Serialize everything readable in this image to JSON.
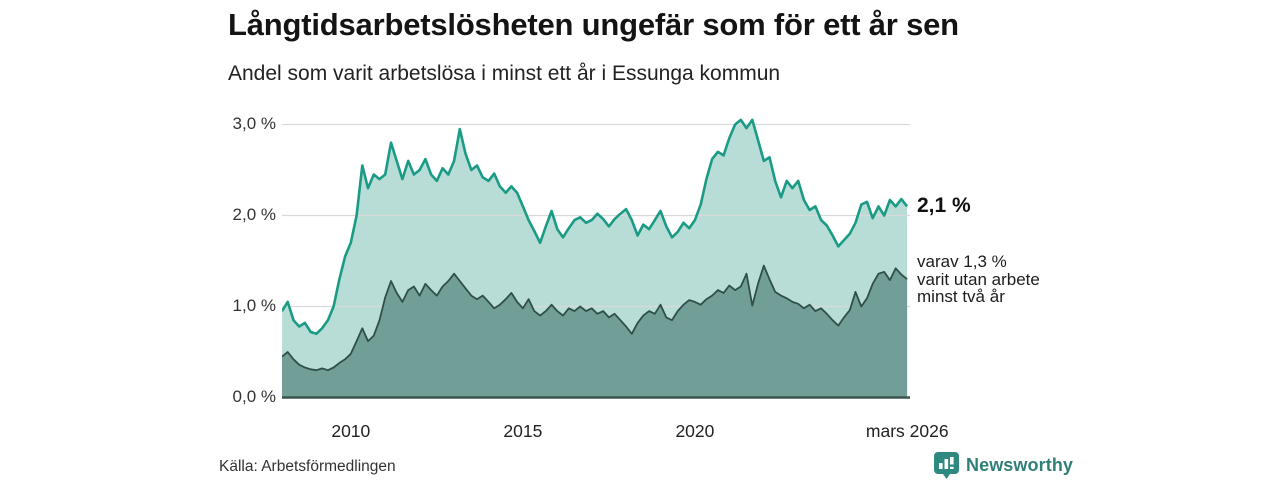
{
  "header": {
    "title": "Långtidsarbetslösheten ungefär som för ett år sen",
    "subtitle": "Andel som varit arbetslösa i minst ett år i Essunga kommun"
  },
  "annotations": {
    "end_value_total": "2,1 %",
    "detail_line1": "varav 1,3 %",
    "detail_line2": "varit utan arbete",
    "detail_line3": "minst två år"
  },
  "footer": {
    "source": "Källa: Arbetsförmedlingen",
    "brand": "Newsworthy",
    "brand_icon": "bar-chart-speech-bubble-icon"
  },
  "colors": {
    "line_total": "#1b9b85",
    "fill_total": "#b7ddd6",
    "line_two_years": "#2f4f49",
    "fill_two_years": "#719e96",
    "gridline": "#d9d9d9",
    "baseline": "#3c544e",
    "brand_teal": "#2f7f78"
  },
  "chart_data": {
    "type": "area",
    "title": "Långtidsarbetslösheten ungefär som för ett år sen",
    "subtitle": "Andel som varit arbetslösa i minst ett år i Essunga kommun",
    "unit": "%",
    "grid": true,
    "xlim": [
      2008,
      2026.25
    ],
    "ylim": [
      0,
      3.2
    ],
    "x_start_year": 2008,
    "points_per_year": 6,
    "x_ticks": [
      {
        "x": 2010,
        "label": "2010"
      },
      {
        "x": 2015,
        "label": "2015"
      },
      {
        "x": 2020,
        "label": "2020"
      },
      {
        "x": 2026.17,
        "label": "mars 2026"
      }
    ],
    "y_ticks": [
      {
        "v": 0,
        "label": "0,0 %"
      },
      {
        "v": 1,
        "label": "1,0 %"
      },
      {
        "v": 2,
        "label": "2,0 %"
      },
      {
        "v": 3,
        "label": "3,0 %"
      }
    ],
    "series": [
      {
        "name": "Arbetslösa minst ett år",
        "end_label": "2,1 %",
        "end_value": 2.1,
        "values": [
          0.95,
          1.05,
          0.85,
          0.78,
          0.82,
          0.72,
          0.7,
          0.76,
          0.85,
          1.0,
          1.3,
          1.55,
          1.7,
          2.0,
          2.55,
          2.3,
          2.45,
          2.4,
          2.45,
          2.8,
          2.6,
          2.4,
          2.6,
          2.45,
          2.5,
          2.62,
          2.45,
          2.38,
          2.52,
          2.45,
          2.6,
          2.95,
          2.68,
          2.5,
          2.55,
          2.42,
          2.38,
          2.46,
          2.32,
          2.25,
          2.32,
          2.25,
          2.1,
          1.95,
          1.83,
          1.7,
          1.88,
          2.05,
          1.85,
          1.76,
          1.86,
          1.95,
          1.98,
          1.92,
          1.95,
          2.02,
          1.96,
          1.88,
          1.96,
          2.02,
          2.07,
          1.95,
          1.78,
          1.9,
          1.85,
          1.95,
          2.05,
          1.88,
          1.76,
          1.82,
          1.92,
          1.86,
          1.95,
          2.12,
          2.4,
          2.62,
          2.7,
          2.66,
          2.85,
          3.0,
          3.05,
          2.96,
          3.05,
          2.83,
          2.6,
          2.64,
          2.38,
          2.2,
          2.38,
          2.3,
          2.38,
          2.17,
          2.06,
          2.1,
          1.95,
          1.89,
          1.78,
          1.66,
          1.73,
          1.8,
          1.92,
          2.12,
          2.15,
          1.97,
          2.1,
          2.0,
          2.17,
          2.1,
          2.18,
          2.1
        ]
      },
      {
        "name": "varav utan arbete minst två år",
        "end_label": "varav 1,3 % varit utan arbete minst två år",
        "end_value": 1.3,
        "values": [
          0.45,
          0.5,
          0.42,
          0.36,
          0.33,
          0.31,
          0.3,
          0.32,
          0.3,
          0.33,
          0.38,
          0.42,
          0.48,
          0.62,
          0.76,
          0.62,
          0.68,
          0.85,
          1.1,
          1.28,
          1.15,
          1.05,
          1.18,
          1.22,
          1.12,
          1.25,
          1.18,
          1.12,
          1.22,
          1.28,
          1.36,
          1.28,
          1.2,
          1.12,
          1.08,
          1.12,
          1.05,
          0.98,
          1.02,
          1.08,
          1.15,
          1.05,
          0.98,
          1.08,
          0.95,
          0.9,
          0.95,
          1.02,
          0.95,
          0.9,
          0.98,
          0.95,
          1.0,
          0.95,
          0.98,
          0.92,
          0.95,
          0.88,
          0.92,
          0.85,
          0.78,
          0.7,
          0.82,
          0.9,
          0.95,
          0.92,
          1.02,
          0.88,
          0.85,
          0.95,
          1.02,
          1.07,
          1.05,
          1.02,
          1.08,
          1.12,
          1.18,
          1.15,
          1.23,
          1.18,
          1.22,
          1.36,
          1.01,
          1.25,
          1.45,
          1.3,
          1.16,
          1.12,
          1.09,
          1.05,
          1.03,
          0.98,
          1.02,
          0.95,
          0.98,
          0.92,
          0.85,
          0.79,
          0.88,
          0.96,
          1.16,
          1.0,
          1.09,
          1.25,
          1.36,
          1.38,
          1.29,
          1.42,
          1.35,
          1.3
        ]
      }
    ],
    "legend_position": "right-annotations"
  }
}
